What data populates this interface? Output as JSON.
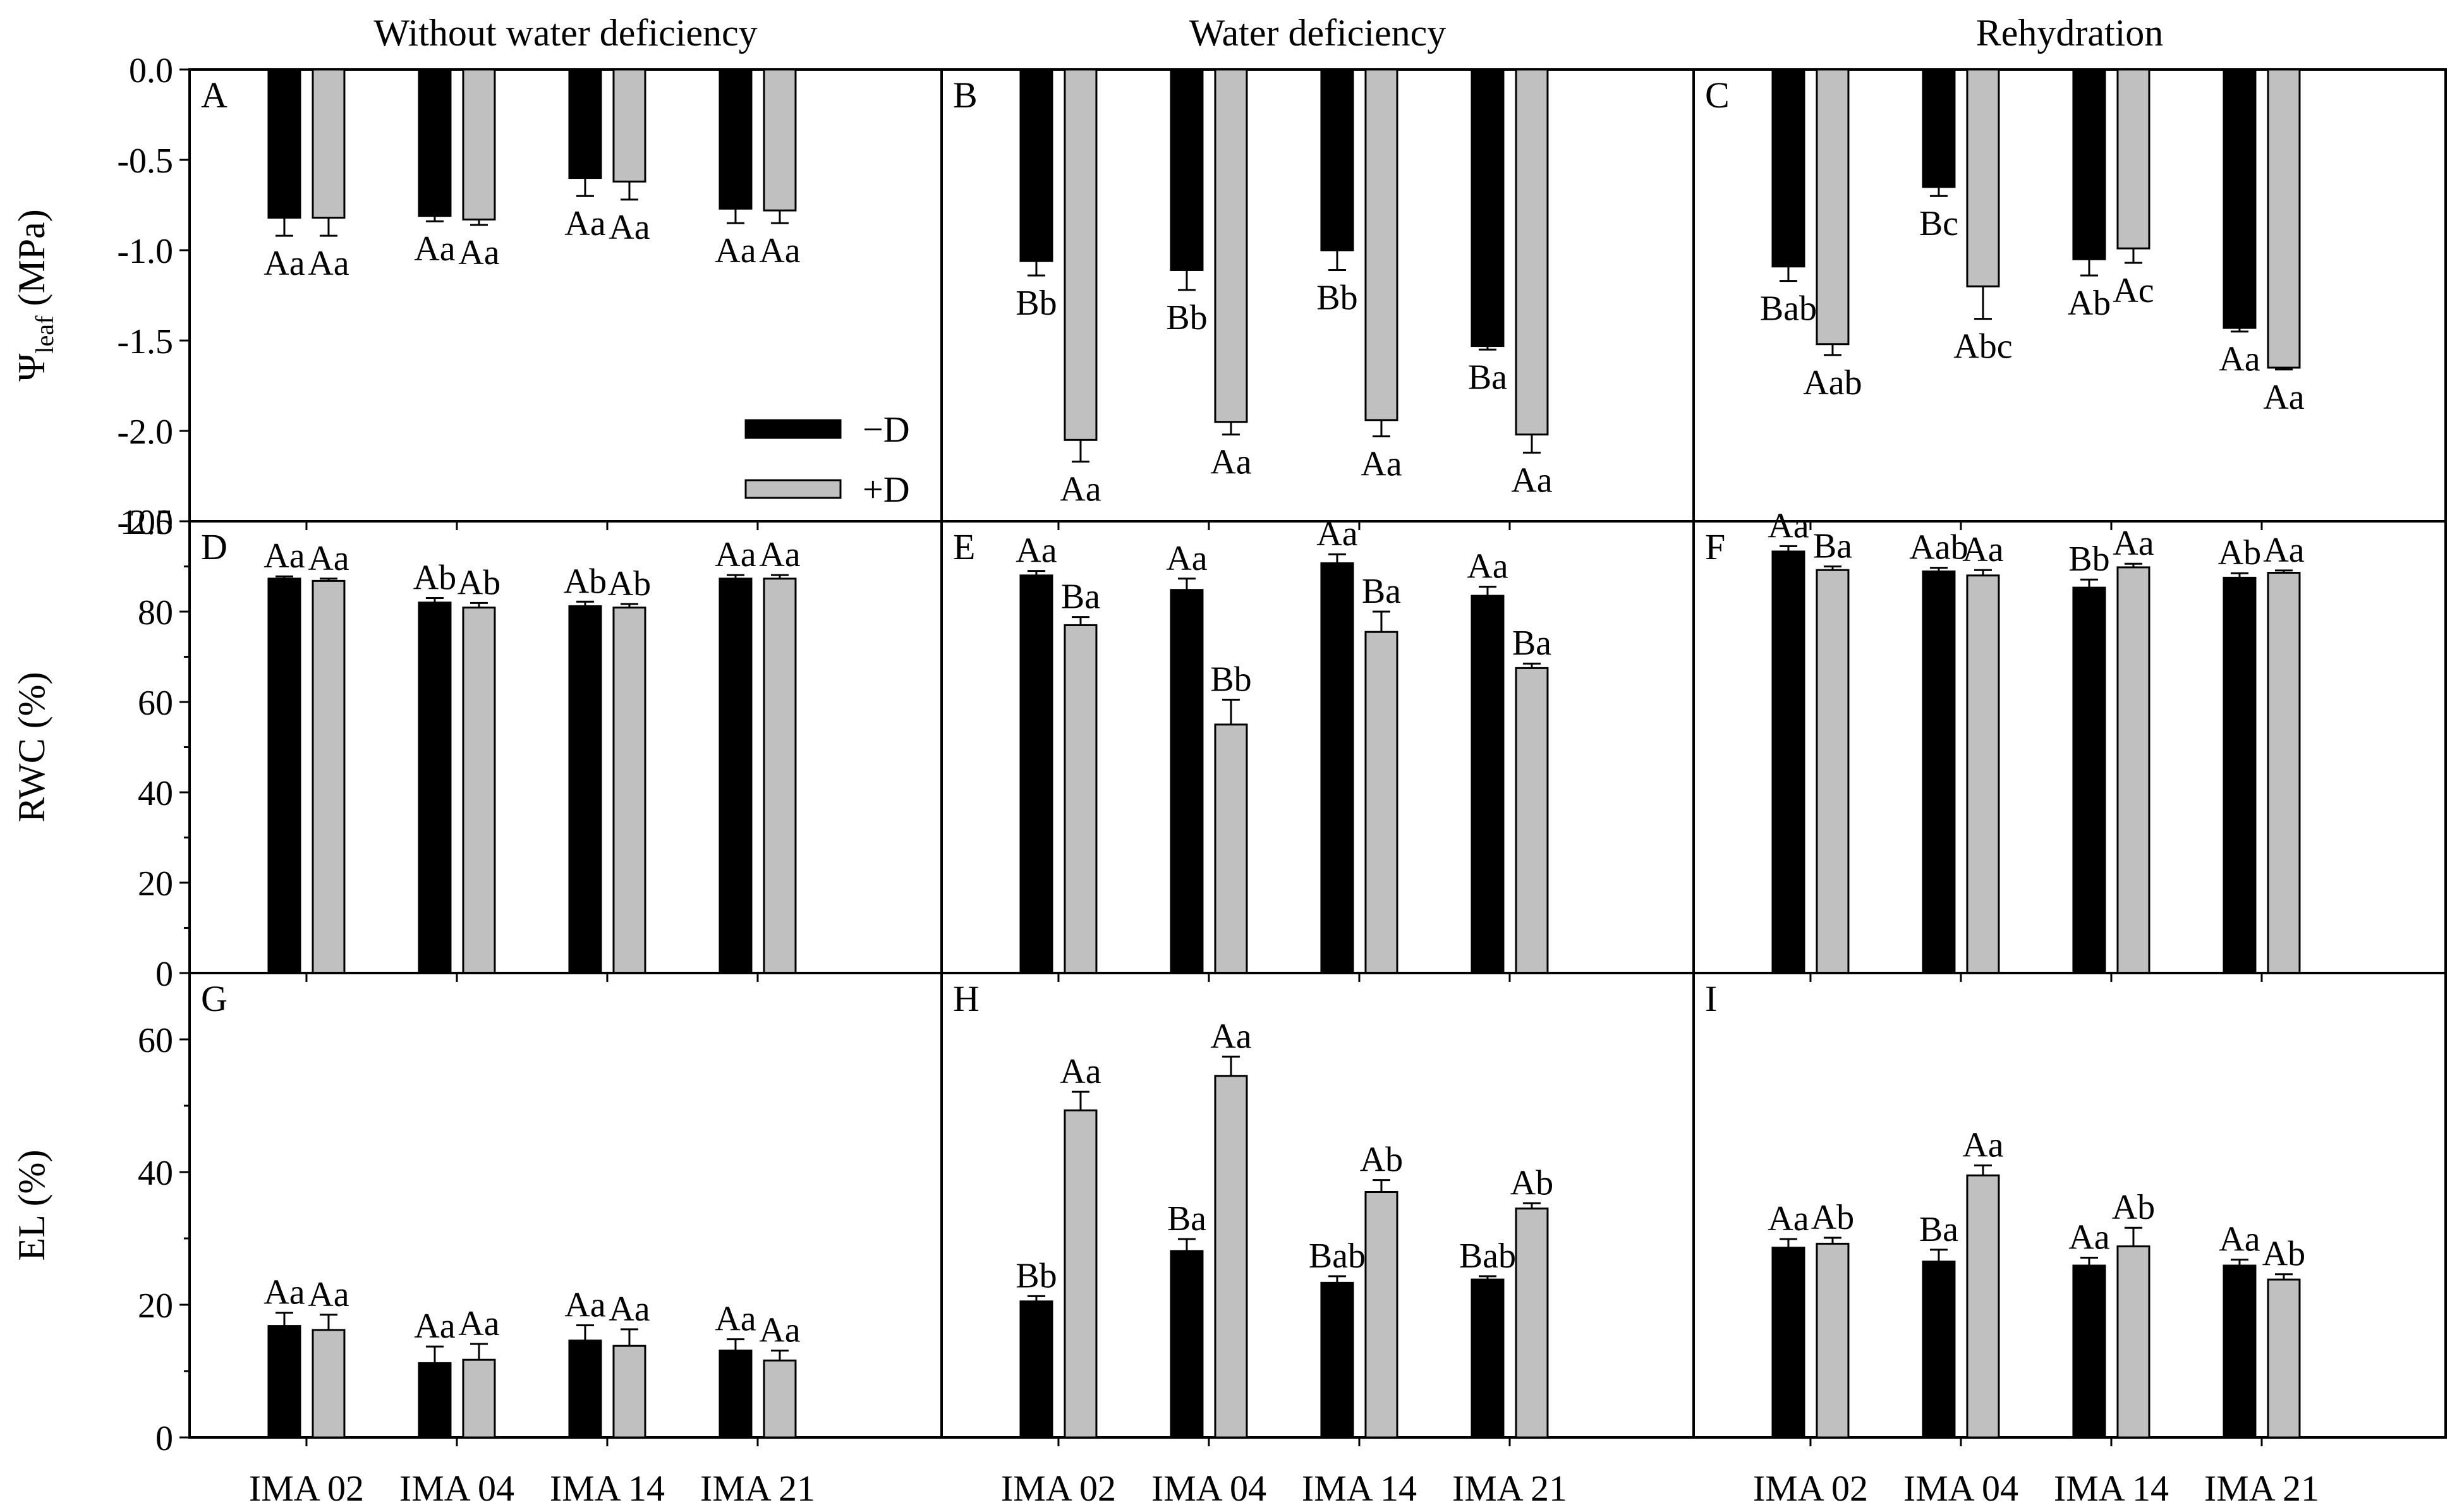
{
  "columns": [
    "Without water deficiency",
    "Water deficiency",
    "Rehydration"
  ],
  "legend": {
    "items": [
      "−D",
      "+D"
    ],
    "colors": [
      "#000000",
      "#c0c0c0"
    ]
  },
  "row_axes": [
    {
      "ylabel": "Ψ",
      "ylabel_sub": "leaf",
      "ylabel_unit": " (MPa)",
      "ylim": [
        -2.5,
        0.0
      ],
      "ticks": [
        "0.0",
        "-0.5",
        "-1.0",
        "-1.5",
        "-2.0",
        "-2.5"
      ]
    },
    {
      "ylabel": "RWC (%)",
      "ylim": [
        0,
        100
      ],
      "ticks": [
        "0",
        "20",
        "40",
        "60",
        "80",
        "100"
      ]
    },
    {
      "ylabel": "EL (%)",
      "ylim": [
        0,
        70
      ],
      "ticks": [
        "0",
        "20",
        "40",
        "60"
      ]
    }
  ],
  "chart_data": [
    {
      "type": "bar",
      "panel": "A",
      "column_title": "Without water deficiency",
      "ylabel": "Ψleaf (MPa)",
      "ylim": [
        -2.5,
        0.0
      ],
      "categories": [
        "IMA 02",
        "IMA 04",
        "IMA 14",
        "IMA 21"
      ],
      "series": [
        {
          "name": "−D",
          "values": [
            -0.82,
            -0.81,
            -0.6,
            -0.77
          ],
          "errors": [
            0.1,
            0.03,
            0.1,
            0.08
          ],
          "labels": [
            "Aa",
            "Aa",
            "Aa",
            "Aa"
          ]
        },
        {
          "name": "+D",
          "values": [
            -0.82,
            -0.83,
            -0.62,
            -0.78
          ],
          "errors": [
            0.1,
            0.03,
            0.1,
            0.07
          ],
          "labels": [
            "Aa",
            "Aa",
            "Aa",
            "Aa"
          ]
        }
      ]
    },
    {
      "type": "bar",
      "panel": "B",
      "column_title": "Water deficiency",
      "ylabel": "Ψleaf (MPa)",
      "ylim": [
        -2.5,
        0.0
      ],
      "categories": [
        "IMA 02",
        "IMA 04",
        "IMA 14",
        "IMA 21"
      ],
      "series": [
        {
          "name": "−D",
          "values": [
            -1.06,
            -1.11,
            -1.0,
            -1.53
          ],
          "errors": [
            0.08,
            0.11,
            0.11,
            0.02
          ],
          "labels": [
            "Bb",
            "Bb",
            "Bb",
            "Ba"
          ]
        },
        {
          "name": "+D",
          "values": [
            -2.05,
            -1.95,
            -1.94,
            -2.02
          ],
          "errors": [
            0.12,
            0.07,
            0.09,
            0.1
          ],
          "labels": [
            "Aa",
            "Aa",
            "Aa",
            "Aa"
          ]
        }
      ]
    },
    {
      "type": "bar",
      "panel": "C",
      "column_title": "Rehydration",
      "ylabel": "Ψleaf (MPa)",
      "ylim": [
        -2.5,
        0.0
      ],
      "categories": [
        "IMA 02",
        "IMA 04",
        "IMA 14",
        "IMA 21"
      ],
      "series": [
        {
          "name": "−D",
          "values": [
            -1.09,
            -0.65,
            -1.05,
            -1.43
          ],
          "errors": [
            0.08,
            0.05,
            0.09,
            0.02
          ],
          "labels": [
            "Bab",
            "Bc",
            "Ab",
            "Aa"
          ]
        },
        {
          "name": "+D",
          "values": [
            -1.52,
            -1.2,
            -0.99,
            -1.65
          ],
          "errors": [
            0.06,
            0.18,
            0.08,
            0.01
          ],
          "labels": [
            "Aab",
            "Abc",
            "Ac",
            "Aa"
          ]
        }
      ]
    },
    {
      "type": "bar",
      "panel": "D",
      "column_title": "Without water deficiency",
      "ylabel": "RWC (%)",
      "ylim": [
        0,
        100
      ],
      "categories": [
        "IMA 02",
        "IMA 04",
        "IMA 14",
        "IMA 21"
      ],
      "series": [
        {
          "name": "−D",
          "values": [
            87.3,
            82.0,
            81.2,
            87.3
          ],
          "errors": [
            0.5,
            1.0,
            1.0,
            0.8
          ],
          "labels": [
            "Aa",
            "Ab",
            "Ab",
            "Aa"
          ]
        },
        {
          "name": "+D",
          "values": [
            86.8,
            80.9,
            80.9,
            87.3
          ],
          "errors": [
            0.5,
            1.0,
            0.8,
            0.8
          ],
          "labels": [
            "Aa",
            "Ab",
            "Ab",
            "Aa"
          ]
        }
      ]
    },
    {
      "type": "bar",
      "panel": "E",
      "column_title": "Water deficiency",
      "ylabel": "RWC (%)",
      "ylim": [
        0,
        100
      ],
      "categories": [
        "IMA 02",
        "IMA 04",
        "IMA 14",
        "IMA 21"
      ],
      "series": [
        {
          "name": "−D",
          "values": [
            88.0,
            84.8,
            90.7,
            83.5
          ],
          "errors": [
            1.0,
            2.5,
            2.0,
            2.0
          ],
          "labels": [
            "Aa",
            "Aa",
            "Aa",
            "Aa"
          ]
        },
        {
          "name": "+D",
          "values": [
            77.0,
            55.0,
            75.5,
            67.5
          ],
          "errors": [
            1.8,
            5.5,
            4.5,
            1.0
          ],
          "labels": [
            "Ba",
            "Bb",
            "Ba",
            "Ba"
          ]
        }
      ]
    },
    {
      "type": "bar",
      "panel": "F",
      "column_title": "Rehydration",
      "ylabel": "RWC (%)",
      "ylim": [
        0,
        100
      ],
      "categories": [
        "IMA 02",
        "IMA 04",
        "IMA 14",
        "IMA 21"
      ],
      "series": [
        {
          "name": "−D",
          "values": [
            93.3,
            88.9,
            85.3,
            87.5
          ],
          "errors": [
            1.2,
            0.8,
            1.8,
            1.0
          ],
          "labels": [
            "Aa",
            "Aab",
            "Bb",
            "Ab"
          ]
        },
        {
          "name": "+D",
          "values": [
            89.2,
            88.0,
            89.8,
            88.6
          ],
          "errors": [
            0.8,
            1.2,
            0.8,
            0.5
          ],
          "labels": [
            "Ba",
            "Aa",
            "Aa",
            "Aa"
          ]
        }
      ]
    },
    {
      "type": "bar",
      "panel": "G",
      "column_title": "Without water deficiency",
      "ylabel": "EL (%)",
      "ylim": [
        0,
        70
      ],
      "categories": [
        "IMA 02",
        "IMA 04",
        "IMA 14",
        "IMA 21"
      ],
      "series": [
        {
          "name": "−D",
          "values": [
            16.8,
            11.2,
            14.6,
            13.1
          ],
          "errors": [
            2.0,
            2.5,
            2.3,
            1.7
          ],
          "labels": [
            "Aa",
            "Aa",
            "Aa",
            "Aa"
          ]
        },
        {
          "name": "+D",
          "values": [
            16.2,
            11.7,
            13.8,
            11.6
          ],
          "errors": [
            2.3,
            2.4,
            2.5,
            1.5
          ],
          "labels": [
            "Aa",
            "Aa",
            "Aa",
            "Aa"
          ]
        }
      ]
    },
    {
      "type": "bar",
      "panel": "H",
      "column_title": "Water deficiency",
      "ylabel": "EL (%)",
      "ylim": [
        0,
        70
      ],
      "categories": [
        "IMA 02",
        "IMA 04",
        "IMA 14",
        "IMA 21"
      ],
      "series": [
        {
          "name": "−D",
          "values": [
            20.5,
            28.1,
            23.3,
            23.8
          ],
          "errors": [
            0.8,
            1.8,
            1.0,
            0.5
          ],
          "labels": [
            "Bb",
            "Ba",
            "Bab",
            "Bab"
          ]
        },
        {
          "name": "+D",
          "values": [
            49.3,
            54.5,
            37.0,
            34.5
          ],
          "errors": [
            2.8,
            2.9,
            1.8,
            0.8
          ],
          "labels": [
            "Aa",
            "Aa",
            "Ab",
            "Ab"
          ]
        }
      ]
    },
    {
      "type": "bar",
      "panel": "I",
      "column_title": "Rehydration",
      "ylabel": "EL (%)",
      "ylim": [
        0,
        70
      ],
      "categories": [
        "IMA 02",
        "IMA 04",
        "IMA 14",
        "IMA 21"
      ],
      "series": [
        {
          "name": "−D",
          "values": [
            28.6,
            26.5,
            25.9,
            25.9
          ],
          "errors": [
            1.3,
            1.8,
            1.2,
            0.9
          ],
          "labels": [
            "Aa",
            "Ba",
            "Aa",
            "Aa"
          ]
        },
        {
          "name": "+D",
          "values": [
            29.2,
            39.5,
            28.8,
            23.8
          ],
          "errors": [
            0.9,
            1.5,
            2.8,
            0.8
          ],
          "labels": [
            "Ab",
            "Aa",
            "Ab",
            "Ab"
          ]
        }
      ]
    }
  ]
}
